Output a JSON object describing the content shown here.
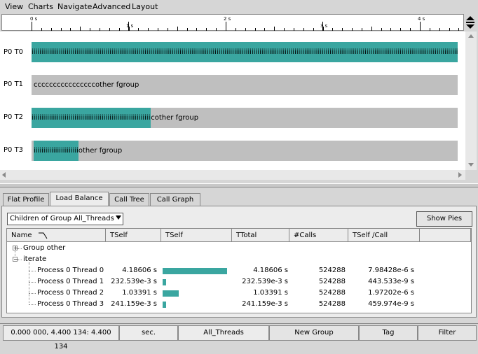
{
  "menubar": {
    "items": [
      {
        "label": "View",
        "underline": "V"
      },
      {
        "label": "Charts",
        "underline": "C"
      },
      {
        "label": "Navigate",
        "underline": "N"
      },
      {
        "label": "Advanced",
        "underline": "A"
      },
      {
        "label": "Layout",
        "underline": "L"
      }
    ]
  },
  "ruler": {
    "ticks": [
      {
        "label": "0 s"
      },
      {
        "label": "1 s"
      },
      {
        "label": "2 s"
      },
      {
        "label": "3 s"
      },
      {
        "label": "4 s"
      }
    ]
  },
  "timeline": {
    "rows": [
      {
        "label": "P0 T0",
        "fill_text": "iiiiiiiiiiiiiiiiiiiiiiiiiiiiiiiiiiiiiiiiiiiiiiiiiiiiiiiiiiiiiiiiiiiiiiiiiiiiiiiiiiiiiiiiiiiiiiiiiiiiiiiiiiiiiiiiiiiiiiiiiiiiiiiiiiiiiiiiiiiiiiiiiiiiiiiiiiiiiiiiiiiiiiiiiiiiiiiiiiiiiiiiiiiiiiiiiiiiiiiiiiiiiiiiiiiiiiiiiiiiiiiiiiiiiiiiii",
        "rest_text": "",
        "fill_fraction": 1.0,
        "start_fraction": 0.0
      },
      {
        "label": "P0 T1",
        "fill_text": "",
        "rest_text": "ccccccccccccccccother fgroup",
        "fill_fraction": 0.0,
        "start_fraction": 0.0
      },
      {
        "label": "P0 T2",
        "fill_text": "iiiiiiiiiiiiiiiiiiiiiiiiiiiiiiiiiiiiiiiiiiiiiiiiiiiiiiiiiiiiiiiiiiiiiii",
        "rest_text": "cother fgroup",
        "fill_fraction": 0.28,
        "start_fraction": 0.0
      },
      {
        "label": "P0 T3",
        "fill_text": "iiiiiiiiiiiiiiiiiiiiiiii",
        "rest_text": "other fgroup",
        "fill_fraction": 0.105,
        "start_fraction": 0.005
      }
    ]
  },
  "tabs": [
    {
      "label": "Flat Profile",
      "active": false
    },
    {
      "label": "Load Balance",
      "active": true
    },
    {
      "label": "Call Tree",
      "active": false
    },
    {
      "label": "Call Graph",
      "active": false
    }
  ],
  "load_balance": {
    "group_select": "Children of Group All_Threads",
    "show_pies_label": "Show Pies",
    "columns": [
      "Name",
      "TSelf",
      "TSelf",
      "TTotal",
      "#Calls",
      "TSelf /Call"
    ],
    "tree": [
      {
        "name": "Group other",
        "expander": "+",
        "level": 0
      },
      {
        "name": "iterate",
        "expander": "−",
        "level": 0
      }
    ],
    "rows": [
      {
        "name": "Process 0 Thread 0",
        "tself": "4.18606  s",
        "bar_fraction": 1.0,
        "ttotal": "4.18606  s",
        "calls": "524288",
        "tself_call": "7.98428e-6 s"
      },
      {
        "name": "Process 0 Thread 1",
        "tself": "232.539e-3 s",
        "bar_fraction": 0.0556,
        "ttotal": "232.539e-3 s",
        "calls": "524288",
        "tself_call": "443.533e-9 s"
      },
      {
        "name": "Process 0 Thread 2",
        "tself": "1.03391  s",
        "bar_fraction": 0.247,
        "ttotal": "1.03391  s",
        "calls": "524288",
        "tself_call": "1.97202e-6 s"
      },
      {
        "name": "Process 0 Thread 3",
        "tself": "241.159e-3 s",
        "bar_fraction": 0.0576,
        "ttotal": "241.159e-3 s",
        "calls": "524288",
        "tself_call": "459.974e-9 s"
      }
    ]
  },
  "statusbar": {
    "range": "0.000 000, 4.400 134: 4.400 134",
    "unit": "sec.",
    "group": "All_Threads",
    "new_group_label": "New Group",
    "tag_label": "Tag",
    "filter_label": "Filter"
  },
  "colors": {
    "bar_fill": "#3aa6a0",
    "bar_background": "#bfbfbf"
  }
}
